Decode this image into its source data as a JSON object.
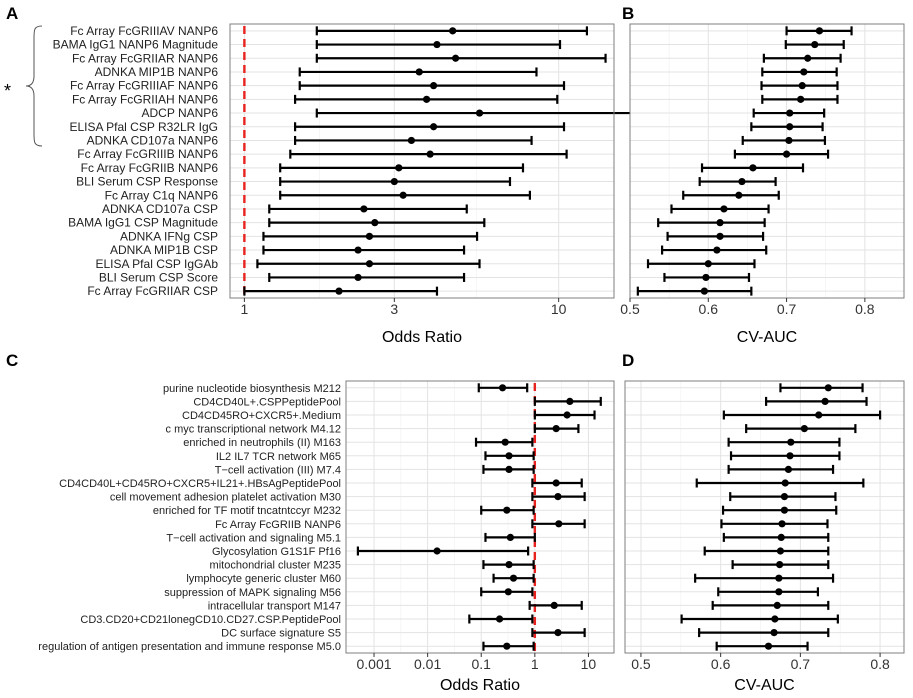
{
  "figure": {
    "panel_letters": [
      "A",
      "B",
      "C",
      "D"
    ],
    "group_marker": "*"
  },
  "chart_data": [
    {
      "panel": "A",
      "type": "forest",
      "xlabel": "Odds Ratio",
      "x_scale": "log10",
      "xlim": [
        0.9,
        15
      ],
      "xticks": [
        1,
        3,
        10
      ],
      "xtick_labels": [
        "1",
        "3",
        "10"
      ],
      "reference_line": 1,
      "bracket_rows": 9,
      "rows": [
        {
          "label": "Fc Array FcGRIIIAV NANP6",
          "est": 4.6,
          "lo": 1.7,
          "hi": 12.3
        },
        {
          "label": "BAMA IgG1 NANP6 Magnitude",
          "est": 4.1,
          "lo": 1.7,
          "hi": 10.1
        },
        {
          "label": "Fc Array FcGRIIAR NANP6",
          "est": 4.7,
          "lo": 1.7,
          "hi": 14.1
        },
        {
          "label": "ADNKA MIP1B NANP6",
          "est": 3.6,
          "lo": 1.5,
          "hi": 8.5
        },
        {
          "label": "Fc Array FcGRIIIAF NANP6",
          "est": 4.0,
          "lo": 1.5,
          "hi": 10.4
        },
        {
          "label": "Fc Array FcGRIIAH NANP6",
          "est": 3.8,
          "lo": 1.45,
          "hi": 9.9
        },
        {
          "label": "ADCP NANP6",
          "est": 5.6,
          "lo": 1.7,
          "hi": 17.8
        },
        {
          "label": "ELISA Pfal CSP R32LR IgG",
          "est": 4.0,
          "lo": 1.45,
          "hi": 10.4
        },
        {
          "label": "ADNKA CD107a NANP6",
          "est": 3.4,
          "lo": 1.45,
          "hi": 8.2
        },
        {
          "label": "Fc Array FcGRIIIB NANP6",
          "est": 3.9,
          "lo": 1.4,
          "hi": 10.6
        },
        {
          "label": "Fc Array FcGRIIB NANP6",
          "est": 3.1,
          "lo": 1.3,
          "hi": 7.7
        },
        {
          "label": "BLI Serum CSP Response",
          "est": 3.0,
          "lo": 1.3,
          "hi": 7.0
        },
        {
          "label": "Fc Array C1q NANP6",
          "est": 3.2,
          "lo": 1.3,
          "hi": 8.1
        },
        {
          "label": "ADNKA CD107a CSP",
          "est": 2.4,
          "lo": 1.2,
          "hi": 5.1
        },
        {
          "label": "BAMA IgG1 CSP Magnitude",
          "est": 2.6,
          "lo": 1.2,
          "hi": 5.8
        },
        {
          "label": "ADNKA IFNg CSP",
          "est": 2.5,
          "lo": 1.15,
          "hi": 5.5
        },
        {
          "label": "ADNKA MIP1B CSP",
          "est": 2.3,
          "lo": 1.15,
          "hi": 5.0
        },
        {
          "label": "ELISA Pfal CSP IgGAb",
          "est": 2.5,
          "lo": 1.1,
          "hi": 5.6
        },
        {
          "label": "BLI Serum CSP Score",
          "est": 2.3,
          "lo": 1.2,
          "hi": 5.0
        },
        {
          "label": "Fc Array FcGRIIAR CSP",
          "est": 2.0,
          "lo": 1.0,
          "hi": 4.1
        }
      ]
    },
    {
      "panel": "B",
      "type": "forest",
      "xlabel": "CV-AUC",
      "x_scale": "linear",
      "xlim": [
        0.5,
        0.85
      ],
      "xticks": [
        0.5,
        0.6,
        0.7,
        0.8
      ],
      "xtick_labels": [
        "0.5",
        "0.6",
        "0.7",
        "0.8"
      ],
      "rows": [
        {
          "est": 0.742,
          "lo": 0.7,
          "hi": 0.783
        },
        {
          "est": 0.736,
          "lo": 0.699,
          "hi": 0.773
        },
        {
          "est": 0.727,
          "lo": 0.671,
          "hi": 0.769
        },
        {
          "est": 0.722,
          "lo": 0.669,
          "hi": 0.764
        },
        {
          "est": 0.72,
          "lo": 0.668,
          "hi": 0.765
        },
        {
          "est": 0.718,
          "lo": 0.669,
          "hi": 0.765
        },
        {
          "est": 0.704,
          "lo": 0.658,
          "hi": 0.748
        },
        {
          "est": 0.704,
          "lo": 0.655,
          "hi": 0.746
        },
        {
          "est": 0.703,
          "lo": 0.644,
          "hi": 0.749
        },
        {
          "est": 0.7,
          "lo": 0.634,
          "hi": 0.753
        },
        {
          "est": 0.657,
          "lo": 0.592,
          "hi": 0.721
        },
        {
          "est": 0.643,
          "lo": 0.589,
          "hi": 0.686
        },
        {
          "est": 0.639,
          "lo": 0.568,
          "hi": 0.69
        },
        {
          "est": 0.62,
          "lo": 0.553,
          "hi": 0.677
        },
        {
          "est": 0.615,
          "lo": 0.536,
          "hi": 0.672
        },
        {
          "est": 0.615,
          "lo": 0.548,
          "hi": 0.67
        },
        {
          "est": 0.611,
          "lo": 0.541,
          "hi": 0.674
        },
        {
          "est": 0.6,
          "lo": 0.523,
          "hi": 0.659
        },
        {
          "est": 0.597,
          "lo": 0.544,
          "hi": 0.652
        },
        {
          "est": 0.595,
          "lo": 0.51,
          "hi": 0.655
        }
      ]
    },
    {
      "panel": "C",
      "type": "forest",
      "xlabel": "Odds Ratio",
      "x_scale": "log10",
      "xlim": [
        0.0003,
        30
      ],
      "xticks": [
        0.001,
        0.01,
        0.1,
        1,
        10
      ],
      "xtick_labels": [
        "0.001",
        "0.01",
        "0.1",
        "1",
        "10"
      ],
      "reference_line": 1,
      "rows": [
        {
          "label": "purine nucleotide biosynthesis M212",
          "est": 0.25,
          "lo": 0.09,
          "hi": 0.72
        },
        {
          "label": "CD4CD40L+.CSPPeptidePool",
          "est": 4.5,
          "lo": 1.0,
          "hi": 17.0
        },
        {
          "label": "CD4CD45RO+CXCR5+.Medium",
          "est": 4.0,
          "lo": 1.0,
          "hi": 13.0
        },
        {
          "label": "c myc transcriptional network M4.12",
          "est": 2.5,
          "lo": 1.0,
          "hi": 6.5
        },
        {
          "label": "enriched in neutrophils (II) M163",
          "est": 0.28,
          "lo": 0.08,
          "hi": 0.9
        },
        {
          "label": "IL2 IL7 TCR network M65",
          "est": 0.33,
          "lo": 0.12,
          "hi": 0.95
        },
        {
          "label": "T−cell activation (III) M7.4",
          "est": 0.33,
          "lo": 0.11,
          "hi": 0.95
        },
        {
          "label": "CD4CD40L+CD45RO+CXCR5+IL21+.HBsAgPeptidePool",
          "est": 2.5,
          "lo": 0.9,
          "hi": 7.5
        },
        {
          "label": "cell movement adhesion platelet activation M30",
          "est": 2.7,
          "lo": 0.9,
          "hi": 8.5
        },
        {
          "label": "enriched for TF motif tncatntccyr M232",
          "est": 0.3,
          "lo": 0.1,
          "hi": 0.95
        },
        {
          "label": "Fc Array FcGRIIB NANP6",
          "est": 2.8,
          "lo": 0.9,
          "hi": 8.5
        },
        {
          "label": "T−cell activation and signaling M5.1",
          "est": 0.35,
          "lo": 0.12,
          "hi": 1.0
        },
        {
          "label": "Glycosylation G1S1F Pf16",
          "est": 0.015,
          "lo": 0.0005,
          "hi": 0.75
        },
        {
          "label": "mitochondrial cluster M235",
          "est": 0.33,
          "lo": 0.11,
          "hi": 0.95
        },
        {
          "label": "lymphocyte generic cluster M60",
          "est": 0.4,
          "lo": 0.17,
          "hi": 0.95
        },
        {
          "label": "suppression of MAPK signaling M56",
          "est": 0.32,
          "lo": 0.1,
          "hi": 0.9
        },
        {
          "label": "intracellular transport M147",
          "est": 2.3,
          "lo": 0.8,
          "hi": 7.5
        },
        {
          "label": "CD3.CD20+CD21lonegCD10.CD27.CSP.PeptidePool",
          "est": 0.22,
          "lo": 0.06,
          "hi": 0.9
        },
        {
          "label": "DC surface signature S5",
          "est": 2.7,
          "lo": 0.9,
          "hi": 8.5
        },
        {
          "label": "regulation of antigen presentation and immune response M5.0",
          "est": 0.3,
          "lo": 0.11,
          "hi": 0.95
        }
      ]
    },
    {
      "panel": "D",
      "type": "forest",
      "xlabel": "CV-AUC",
      "x_scale": "linear",
      "xlim": [
        0.48,
        0.83
      ],
      "xticks": [
        0.5,
        0.6,
        0.7,
        0.8
      ],
      "xtick_labels": [
        "0.5",
        "0.6",
        "0.7",
        "0.8"
      ],
      "rows": [
        {
          "est": 0.735,
          "lo": 0.675,
          "hi": 0.778
        },
        {
          "est": 0.731,
          "lo": 0.657,
          "hi": 0.783
        },
        {
          "est": 0.723,
          "lo": 0.604,
          "hi": 0.8
        },
        {
          "est": 0.705,
          "lo": 0.632,
          "hi": 0.769
        },
        {
          "est": 0.688,
          "lo": 0.61,
          "hi": 0.749
        },
        {
          "est": 0.687,
          "lo": 0.613,
          "hi": 0.749
        },
        {
          "est": 0.685,
          "lo": 0.61,
          "hi": 0.741
        },
        {
          "est": 0.681,
          "lo": 0.57,
          "hi": 0.779
        },
        {
          "est": 0.68,
          "lo": 0.612,
          "hi": 0.744
        },
        {
          "est": 0.68,
          "lo": 0.603,
          "hi": 0.745
        },
        {
          "est": 0.677,
          "lo": 0.601,
          "hi": 0.734
        },
        {
          "est": 0.676,
          "lo": 0.604,
          "hi": 0.735
        },
        {
          "est": 0.675,
          "lo": 0.58,
          "hi": 0.735
        },
        {
          "est": 0.674,
          "lo": 0.615,
          "hi": 0.735
        },
        {
          "est": 0.673,
          "lo": 0.568,
          "hi": 0.741
        },
        {
          "est": 0.673,
          "lo": 0.597,
          "hi": 0.722
        },
        {
          "est": 0.671,
          "lo": 0.59,
          "hi": 0.735
        },
        {
          "est": 0.668,
          "lo": 0.551,
          "hi": 0.747
        },
        {
          "est": 0.667,
          "lo": 0.573,
          "hi": 0.735
        },
        {
          "est": 0.66,
          "lo": 0.595,
          "hi": 0.709
        }
      ]
    }
  ]
}
